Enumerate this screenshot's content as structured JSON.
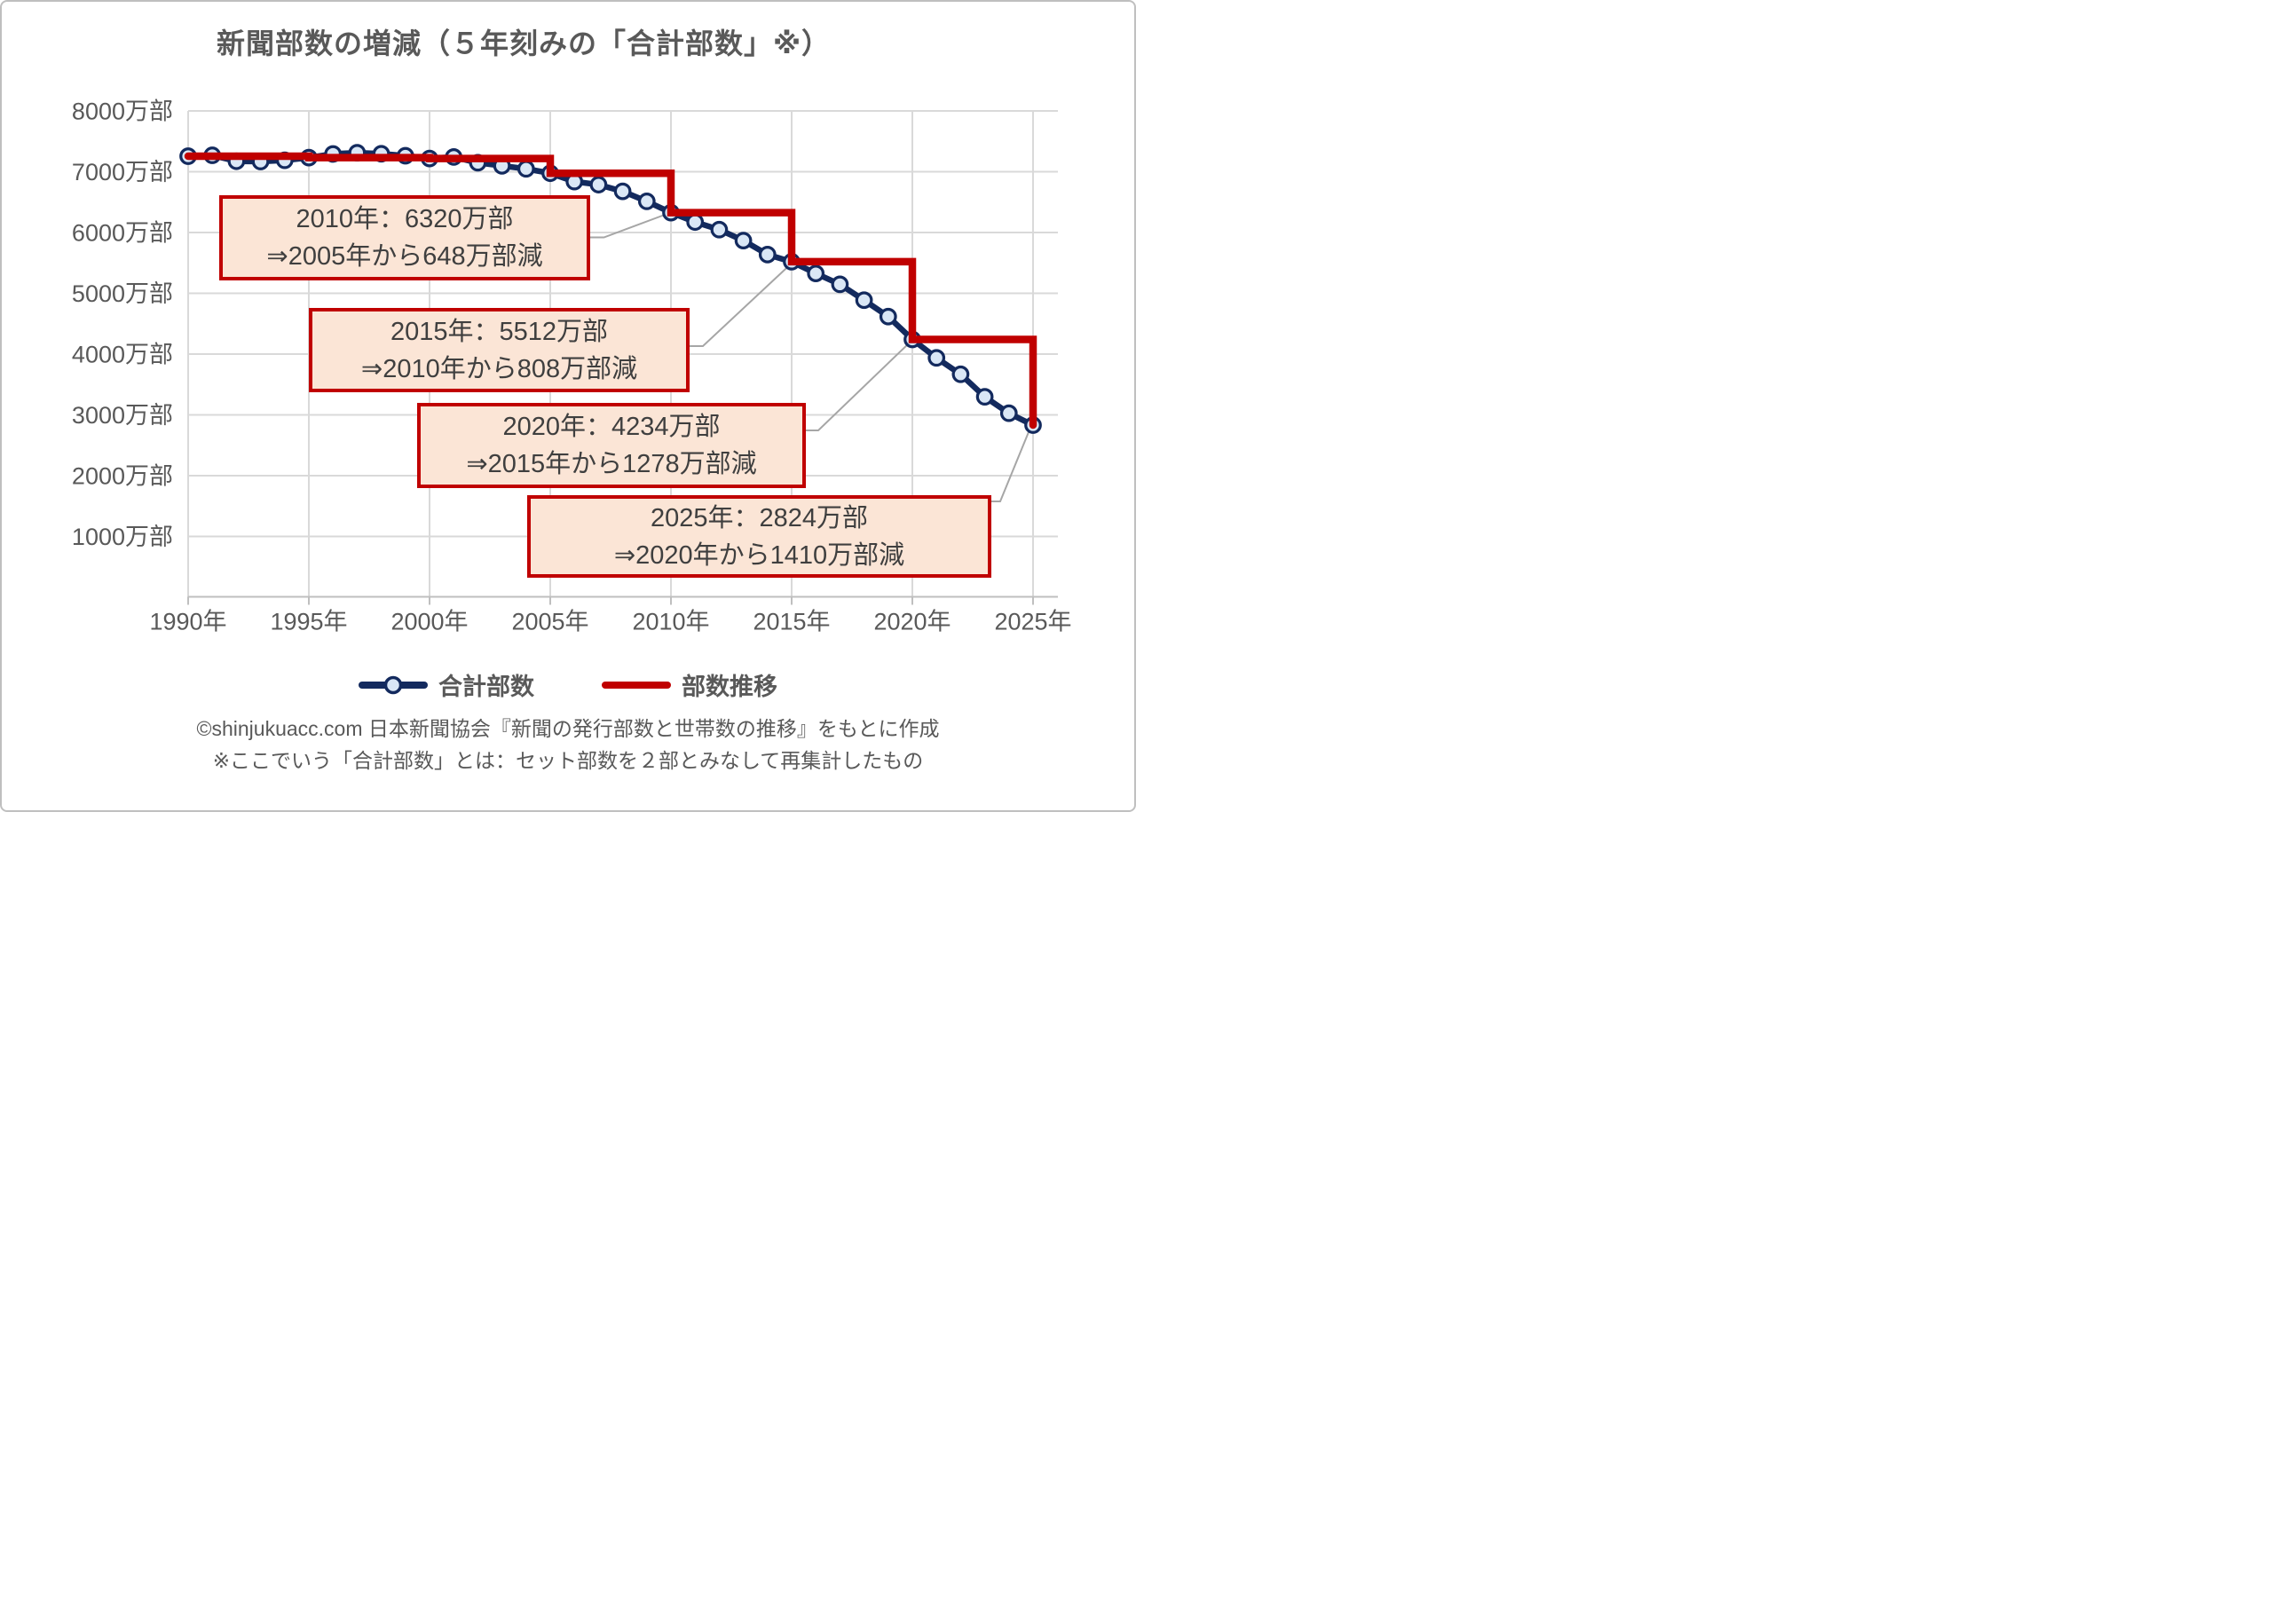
{
  "figure": {
    "title": "新聞部数の増減（５年刻みの「合計部数」※）"
  },
  "chart_data": {
    "type": "line",
    "title": "新聞部数の増減（５年刻みの「合計部数」※）",
    "xlabel": "",
    "ylabel": "",
    "x_ticks": [
      "1990年",
      "1995年",
      "2000年",
      "2005年",
      "2010年",
      "2015年",
      "2020年",
      "2025年"
    ],
    "y_ticks": [
      "8000万部",
      "7000万部",
      "6000万部",
      "5000万部",
      "4000万部",
      "3000万部",
      "2000万部",
      "1000万部"
    ],
    "y_tick_values": [
      8000,
      7000,
      6000,
      5000,
      4000,
      3000,
      2000,
      1000
    ],
    "ylim": [
      0,
      8000
    ],
    "xlim": [
      1990,
      2025
    ],
    "grid": true,
    "legend_position": "bottom",
    "unit": "万部",
    "series": [
      {
        "name": "合計部数",
        "type": "line+markers",
        "x": [
          1990,
          1991,
          1992,
          1993,
          1994,
          1995,
          1996,
          1997,
          1998,
          1999,
          2000,
          2001,
          2002,
          2003,
          2004,
          2005,
          2006,
          2007,
          2008,
          2009,
          2010,
          2011,
          2012,
          2013,
          2014,
          2015,
          2016,
          2017,
          2018,
          2019,
          2020,
          2021,
          2022,
          2023,
          2024,
          2025
        ],
        "values": [
          7248,
          7262,
          7165,
          7160,
          7180,
          7225,
          7285,
          7305,
          7288,
          7255,
          7210,
          7235,
          7140,
          7090,
          7040,
          6968,
          6830,
          6780,
          6670,
          6505,
          6320,
          6165,
          6040,
          5860,
          5630,
          5512,
          5320,
          5140,
          4880,
          4610,
          4234,
          3930,
          3660,
          3290,
          3020,
          2824
        ]
      },
      {
        "name": "部数推移",
        "type": "step",
        "x": [
          1990,
          1995,
          2000,
          2005,
          2010,
          2015,
          2020,
          2025
        ],
        "values": [
          7248,
          7225,
          7210,
          6968,
          6320,
          5512,
          4234,
          2824
        ]
      }
    ],
    "annotations": [
      {
        "line1": "2010年：6320万部",
        "line2": "⇒2005年から648万部減",
        "target_year": 2010,
        "target_value": 6320
      },
      {
        "line1": "2015年：5512万部",
        "line2": "⇒2010年から808万部減",
        "target_year": 2015,
        "target_value": 5512
      },
      {
        "line1": "2020年：4234万部",
        "line2": "⇒2015年から1278万部減",
        "target_year": 2020,
        "target_value": 4234
      },
      {
        "line1": "2025年：2824万部",
        "line2": "⇒2020年から1410万部減",
        "target_year": 2025,
        "target_value": 2824
      }
    ],
    "colors": {
      "total_line": "#132A5E",
      "marker_fill": "#DAE7F6",
      "step_line": "#C00000",
      "grid": "#D9D9D9",
      "axis_line": "#BFBFBF",
      "axis_text": "#595959",
      "annotation_fill": "#FBE5D6",
      "annotation_border": "#C00000",
      "annotation_text": "#3F3F3F",
      "leader": "#A6A6A6"
    }
  },
  "footer": {
    "line1": "©shinjukuacc.com 日本新聞協会『新聞の発行部数と世帯数の推移』をもとに作成",
    "line2": "※ここでいう「合計部数」とは：セット部数を２部とみなして再集計したもの"
  }
}
